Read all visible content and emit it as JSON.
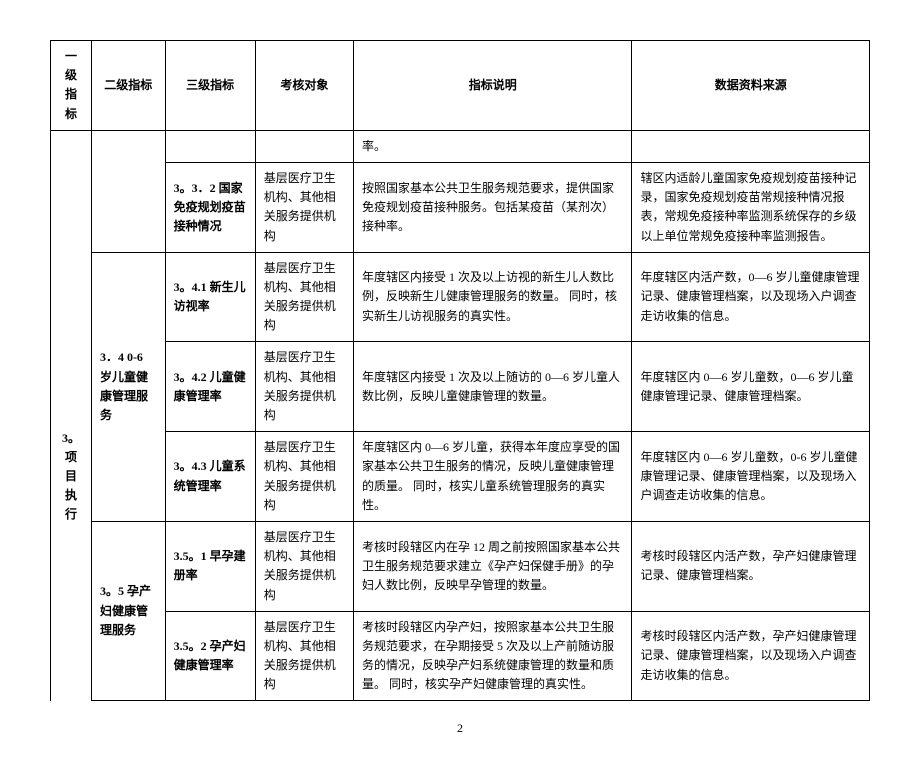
{
  "headers": {
    "h1": "一级指标",
    "h2": "二级指标",
    "h3": "三级指标",
    "h4": "考核对象",
    "h5": "指标说明",
    "h6": "数据资料来源"
  },
  "level1": "3。项目执行",
  "r0": {
    "c5": "率。",
    "c6": ""
  },
  "r1": {
    "c3": "3。3．2 国家免疫规划疫苗接种情况",
    "c4": "基层医疗卫生机构、其他相关服务提供机构",
    "c5": "按照国家基本公共卫生服务规范要求，提供国家免疫规划疫苗接种服务。包括某疫苗（某剂次）接种率。",
    "c6": "辖区内适龄儿童国家免疫规划疫苗接种记录，国家免疫规划疫苗常规接种情况报表，常规免疫接种率监测系统保存的乡级以上单位常规免疫接种率监测报告。"
  },
  "group2": "3．4 0-6 岁儿童健康管理服务",
  "r2": {
    "c3": "3。4.1 新生儿访视率",
    "c4": "基层医疗卫生机构、其他相关服务提供机构",
    "c5": "年度辖区内接受 1 次及以上访视的新生儿人数比例，反映新生儿健康管理服务的数量。\n同时，核实新生儿访视服务的真实性。",
    "c6": "年度辖区内活产数，0—6 岁儿童健康管理记录、健康管理档案，以及现场入户调查走访收集的信息。"
  },
  "r3": {
    "c3": "3。4.2 儿童健康管理率",
    "c4": "基层医疗卫生机构、其他相关服务提供机构",
    "c5": "年度辖区内接受 1 次及以上随访的 0—6 岁儿童人数比例，反映儿童健康管理的数量。",
    "c6": "年度辖区内 0—6 岁儿童数，0—6 岁儿童健康管理记录、健康管理档案。"
  },
  "r4": {
    "c3": "3。4.3 儿童系统管理率",
    "c4": "基层医疗卫生机构、其他相关服务提供机构",
    "c5": "年度辖区内 0—6 岁儿童，获得本年度应享受的国家基本公共卫生服务的情况，反映儿童健康管理的质量。\n同时，核实儿童系统管理服务的真实性。",
    "c6": "年度辖区内 0—6 岁儿童数，0-6 岁儿童健康管理记录、健康管理档案，以及现场入户调查走访收集的信息。"
  },
  "group3": "3。5 孕产妇健康管理服务",
  "r5": {
    "c3": "3.5。1 早孕建册率",
    "c4": "基层医疗卫生机构、其他相关服务提供机构",
    "c5": "考核时段辖区内在孕 12 周之前按照国家基本公共卫生服务规范要求建立《孕产妇保健手册》的孕妇人数比例，反映早孕管理的数量。",
    "c6": "考核时段辖区内活产数，孕产妇健康管理记录、健康管理档案。"
  },
  "r6": {
    "c3": "3.5。2 孕产妇健康管理率",
    "c4": "基层医疗卫生机构、其他相关服务提供机构",
    "c5": "考核时段辖区内孕产妇，按照家基本公共卫生服务规范要求，在孕期接受 5 次及以上产前随访服务的情况，反映孕产妇系统健康管理的数量和质量。\n同时，核实孕产妇健康管理的真实性。",
    "c6": "考核时段辖区内活产数，孕产妇健康管理记录、健康管理档案，以及现场入户调查走访收集的信息。"
  },
  "page": "2"
}
